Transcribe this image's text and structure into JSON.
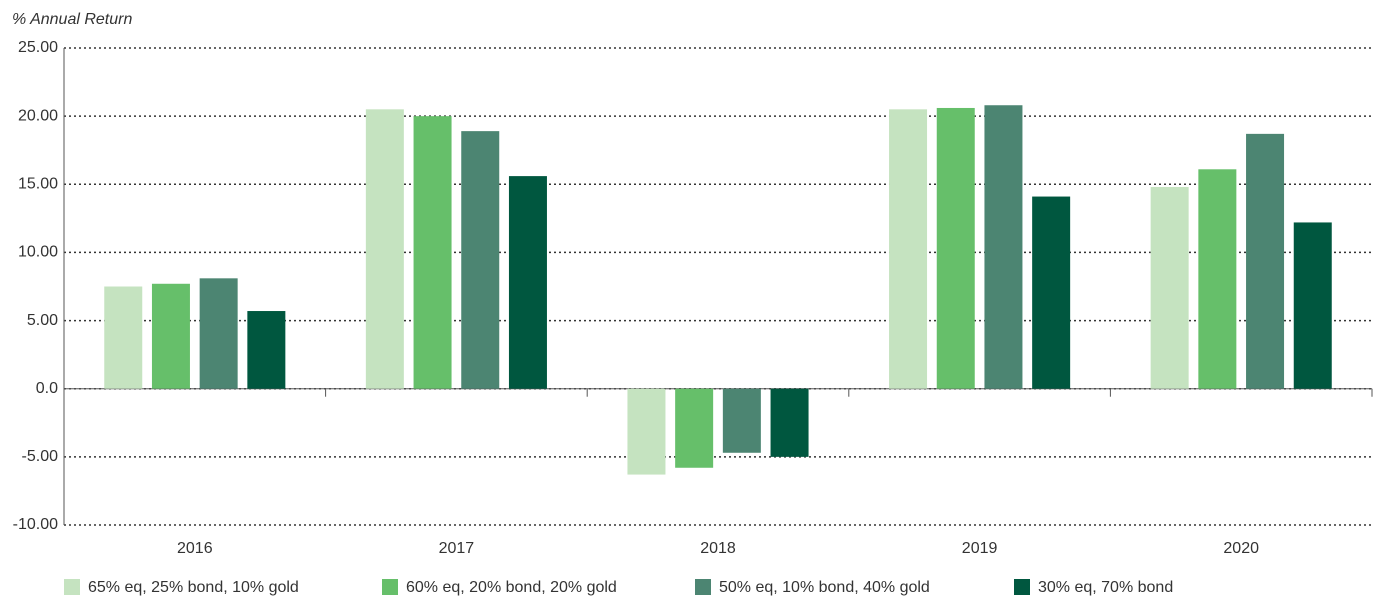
{
  "chart_data": {
    "type": "bar",
    "y_axis_label": "% Annual Return",
    "categories": [
      "2016",
      "2017",
      "2018",
      "2019",
      "2020"
    ],
    "series": [
      {
        "name": "65% eq, 25% bond, 10% gold",
        "color": "#c5e3c0",
        "values": [
          7.5,
          20.5,
          -6.3,
          20.5,
          14.8
        ]
      },
      {
        "name": "60% eq, 20% bond, 20% gold",
        "color": "#66bf6a",
        "values": [
          7.7,
          20.0,
          -5.8,
          20.6,
          16.1
        ]
      },
      {
        "name": "50% eq, 10% bond, 40% gold",
        "color": "#4c8572",
        "values": [
          8.1,
          18.9,
          -4.7,
          20.8,
          18.7
        ]
      },
      {
        "name": "30% eq, 70% bond",
        "color": "#00573f",
        "values": [
          5.7,
          15.6,
          -5.0,
          14.1,
          12.2
        ]
      }
    ],
    "ylim": [
      -10,
      25
    ],
    "yticks": [
      {
        "value": 25,
        "label": "25.00"
      },
      {
        "value": 20,
        "label": "20.00"
      },
      {
        "value": 15,
        "label": "15.00"
      },
      {
        "value": 10,
        "label": "10.00"
      },
      {
        "value": 5,
        "label": "5.00"
      },
      {
        "value": 0,
        "label": "0.0"
      },
      {
        "value": -5,
        "label": "-5.00"
      },
      {
        "value": -10,
        "label": "-10.00"
      }
    ],
    "grid": true,
    "legend": "bottom"
  }
}
